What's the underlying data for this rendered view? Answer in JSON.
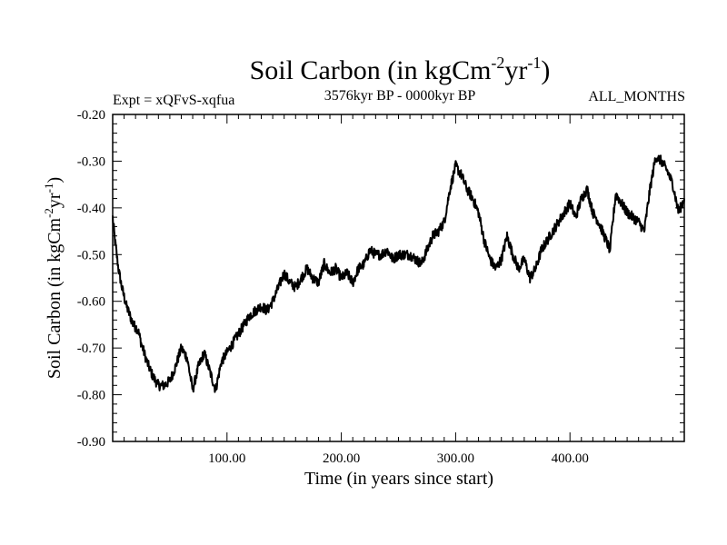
{
  "chart_data": {
    "type": "line",
    "title": "Soil Carbon (in kgCm",
    "title_sup1": "-2",
    "title_mid": "yr",
    "title_sup2": "-1",
    "title_end": ")",
    "experiment": "Expt = xQFvS-xqfua",
    "period": "3576kyr BP - 0000kyr BP",
    "months": "ALL_MONTHS",
    "xlabel": "Time (in years since start)",
    "ylabel": "Soil Carbon (in kgCm",
    "ylabel_sup1": "-2",
    "ylabel_mid": "yr",
    "ylabel_sup2": "-1",
    "ylabel_end": ")",
    "xlim": [
      0,
      500
    ],
    "ylim": [
      -0.9,
      -0.2
    ],
    "xticks": [
      100,
      200,
      300,
      400
    ],
    "xtick_labels": [
      "100.00",
      "200.00",
      "300.00",
      "400.00"
    ],
    "yticks": [
      -0.2,
      -0.3,
      -0.4,
      -0.5,
      -0.6,
      -0.7,
      -0.8,
      -0.9
    ],
    "ytick_labels": [
      "-0.20",
      "-0.30",
      "-0.40",
      "-0.50",
      "-0.60",
      "-0.70",
      "-0.80",
      "-0.90"
    ],
    "series": [
      {
        "name": "Soil Carbon",
        "color": "#000000",
        "x": [
          0,
          2,
          5,
          8,
          12,
          15,
          18,
          22,
          25,
          30,
          35,
          40,
          45,
          50,
          55,
          60,
          65,
          70,
          75,
          80,
          85,
          90,
          95,
          100,
          105,
          110,
          115,
          120,
          125,
          130,
          135,
          140,
          145,
          150,
          155,
          160,
          165,
          170,
          175,
          180,
          185,
          190,
          195,
          200,
          205,
          210,
          215,
          220,
          225,
          230,
          235,
          240,
          245,
          250,
          255,
          260,
          265,
          270,
          275,
          280,
          285,
          290,
          295,
          300,
          305,
          310,
          315,
          320,
          325,
          330,
          335,
          340,
          345,
          350,
          355,
          360,
          365,
          370,
          375,
          380,
          385,
          390,
          395,
          400,
          405,
          410,
          415,
          420,
          425,
          430,
          435,
          440,
          445,
          450,
          455,
          460,
          465,
          470,
          475,
          480,
          485,
          490,
          495,
          500
        ],
        "values": [
          -0.42,
          -0.47,
          -0.53,
          -0.57,
          -0.61,
          -0.63,
          -0.65,
          -0.66,
          -0.69,
          -0.73,
          -0.76,
          -0.78,
          -0.78,
          -0.77,
          -0.74,
          -0.7,
          -0.72,
          -0.79,
          -0.74,
          -0.71,
          -0.75,
          -0.79,
          -0.73,
          -0.71,
          -0.69,
          -0.67,
          -0.65,
          -0.63,
          -0.62,
          -0.61,
          -0.62,
          -0.6,
          -0.57,
          -0.54,
          -0.56,
          -0.57,
          -0.55,
          -0.53,
          -0.55,
          -0.56,
          -0.52,
          -0.54,
          -0.53,
          -0.55,
          -0.54,
          -0.56,
          -0.53,
          -0.52,
          -0.49,
          -0.5,
          -0.5,
          -0.49,
          -0.51,
          -0.5,
          -0.5,
          -0.5,
          -0.51,
          -0.52,
          -0.49,
          -0.46,
          -0.45,
          -0.43,
          -0.36,
          -0.31,
          -0.33,
          -0.36,
          -0.38,
          -0.41,
          -0.47,
          -0.51,
          -0.53,
          -0.51,
          -0.46,
          -0.5,
          -0.53,
          -0.51,
          -0.55,
          -0.53,
          -0.49,
          -0.47,
          -0.45,
          -0.43,
          -0.41,
          -0.39,
          -0.42,
          -0.38,
          -0.36,
          -0.41,
          -0.43,
          -0.46,
          -0.49,
          -0.37,
          -0.39,
          -0.41,
          -0.42,
          -0.43,
          -0.45,
          -0.36,
          -0.29,
          -0.3,
          -0.32,
          -0.35,
          -0.41,
          -0.38
        ]
      }
    ]
  }
}
